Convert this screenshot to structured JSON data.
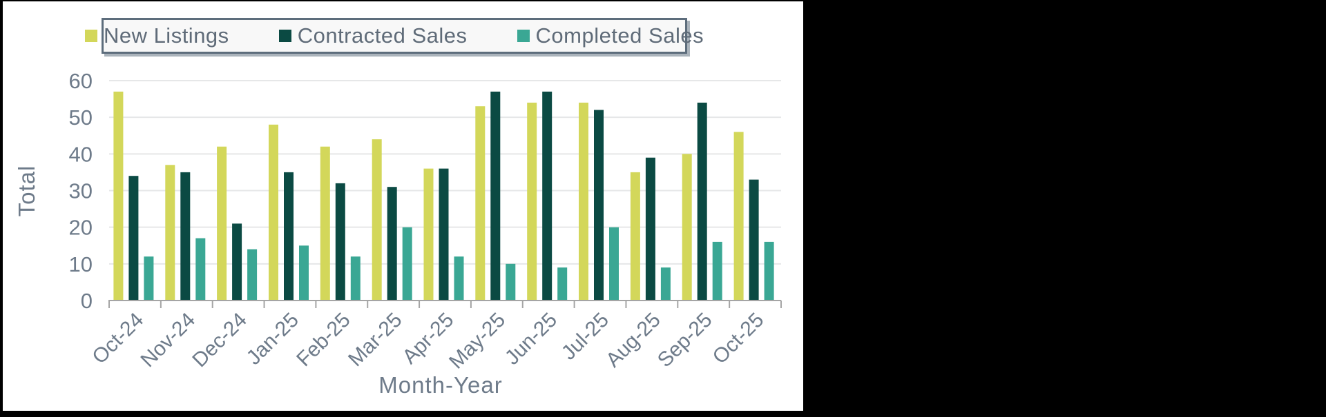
{
  "window": {
    "background": "#000000",
    "panel_background": "#ffffff"
  },
  "legend": {
    "position": "top",
    "background": "#f8f8f8",
    "border_color": "#5d6d7c"
  },
  "colors": {
    "text": "#6e7b8a",
    "legend_text": "#5f6b78",
    "gridline": "#e6e7e8",
    "axis": "#a5a5a5"
  },
  "chart_data": {
    "type": "bar",
    "title": "",
    "xlabel": "Month-Year",
    "ylabel": "Total",
    "ylim": [
      0,
      60
    ],
    "yticks": [
      0,
      10,
      20,
      30,
      40,
      50,
      60
    ],
    "grid": true,
    "legend_position": "top",
    "categories": [
      "Oct-24",
      "Nov-24",
      "Dec-24",
      "Jan-25",
      "Feb-25",
      "Mar-25",
      "Apr-25",
      "May-25",
      "Jun-25",
      "Jul-25",
      "Aug-25",
      "Sep-25",
      "Oct-25"
    ],
    "series": [
      {
        "name": "New Listings",
        "color": "#d3d75a",
        "values": [
          57,
          37,
          42,
          48,
          42,
          44,
          36,
          53,
          54,
          54,
          35,
          40,
          46
        ]
      },
      {
        "name": "Contracted Sales",
        "color": "#0b4a43",
        "values": [
          34,
          35,
          21,
          35,
          32,
          31,
          36,
          57,
          57,
          52,
          39,
          54,
          33
        ]
      },
      {
        "name": "Completed Sales",
        "color": "#3aa794",
        "values": [
          12,
          17,
          14,
          15,
          12,
          20,
          12,
          10,
          9,
          20,
          9,
          16,
          16
        ]
      }
    ]
  }
}
